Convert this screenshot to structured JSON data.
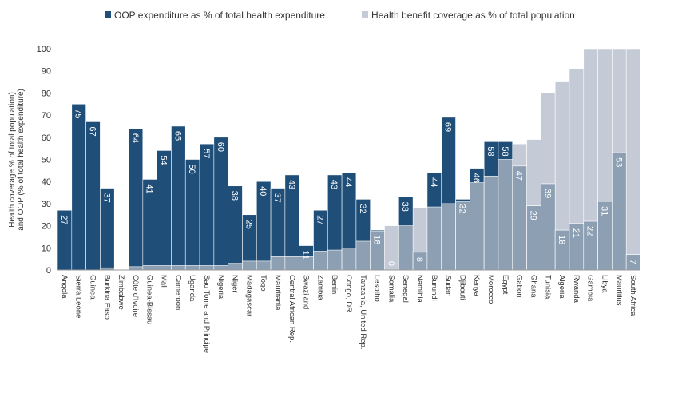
{
  "chart_data": {
    "type": "bar",
    "legend": {
      "placement": "top",
      "items": [
        {
          "label": "OOP expenditure as % of total health expenditure",
          "color": "#1f4e79"
        },
        {
          "label": "Health benefit coverage as % of total population",
          "color": "#c4cad6"
        }
      ]
    },
    "ylabel": "Health coverage % of total population)\nand OOP (% of total health expenditure)",
    "ylim": [
      0,
      100
    ],
    "yticks": [
      0,
      10,
      20,
      30,
      40,
      50,
      60,
      70,
      80,
      90,
      100
    ],
    "grid": false,
    "categories": [
      "Angola",
      "Sierra Leone",
      "Guinea",
      "Burkina Faso",
      "Zimbabwe",
      "Côte d'Ivoire",
      "Guinea-Bissau",
      "Mali",
      "Cameroon",
      "Uganda",
      "Sao Tome and Principe",
      "Nigeria",
      "Niger",
      "Madagascar",
      "Togo",
      "Mauritania",
      "Central African Rep.",
      "Swaziland",
      "Zambia",
      "Benin",
      "Congo, DR",
      "Tanzania, United Rep.",
      "Lesotho",
      "Somalia",
      "Senegal",
      "Namibia",
      "Burundi",
      "Sudan",
      "Djibouti",
      "Kenya",
      "Morocco",
      "Egypt",
      "Gabon",
      "Ghana",
      "Tunisia",
      "Algeria",
      "Rwanda",
      "Gambia",
      "Libya",
      "Mauritius",
      "South Africa"
    ],
    "series": [
      {
        "name": "OOP expenditure as % of total health expenditure",
        "values": [
          27,
          75,
          67,
          37,
          null,
          64,
          41,
          54,
          65,
          50,
          57,
          60,
          38,
          25,
          40,
          37,
          43,
          11,
          27,
          43,
          44,
          32,
          18,
          0,
          33,
          8,
          44,
          69,
          32,
          46,
          58,
          58,
          47,
          29,
          39,
          18,
          21,
          22,
          31,
          53,
          7
        ]
      },
      {
        "name": "Health benefit coverage as % of total population",
        "values": [
          0,
          0,
          0,
          1,
          0,
          1.5,
          2,
          2,
          2,
          2,
          2,
          2,
          3,
          4,
          4,
          6,
          6,
          6,
          8.5,
          9,
          10,
          13,
          17.5,
          20,
          20,
          28,
          28.5,
          30,
          31,
          39.5,
          42.5,
          50,
          57,
          59,
          80,
          85,
          91,
          100,
          100,
          100,
          100
        ]
      }
    ],
    "data_labels": [
      "27",
      "75",
      "67",
      "37",
      "",
      "64",
      "41",
      "54",
      "65",
      "50",
      "57",
      "60",
      "38",
      "25",
      "40",
      "37",
      "43",
      "11",
      "27",
      "43",
      "44",
      "32",
      "18",
      "0",
      "33",
      "8",
      "44",
      "69",
      "32",
      "46",
      "58",
      "58",
      "47",
      "29",
      "39",
      "18",
      "21",
      "22",
      "31",
      "53",
      "7"
    ]
  }
}
